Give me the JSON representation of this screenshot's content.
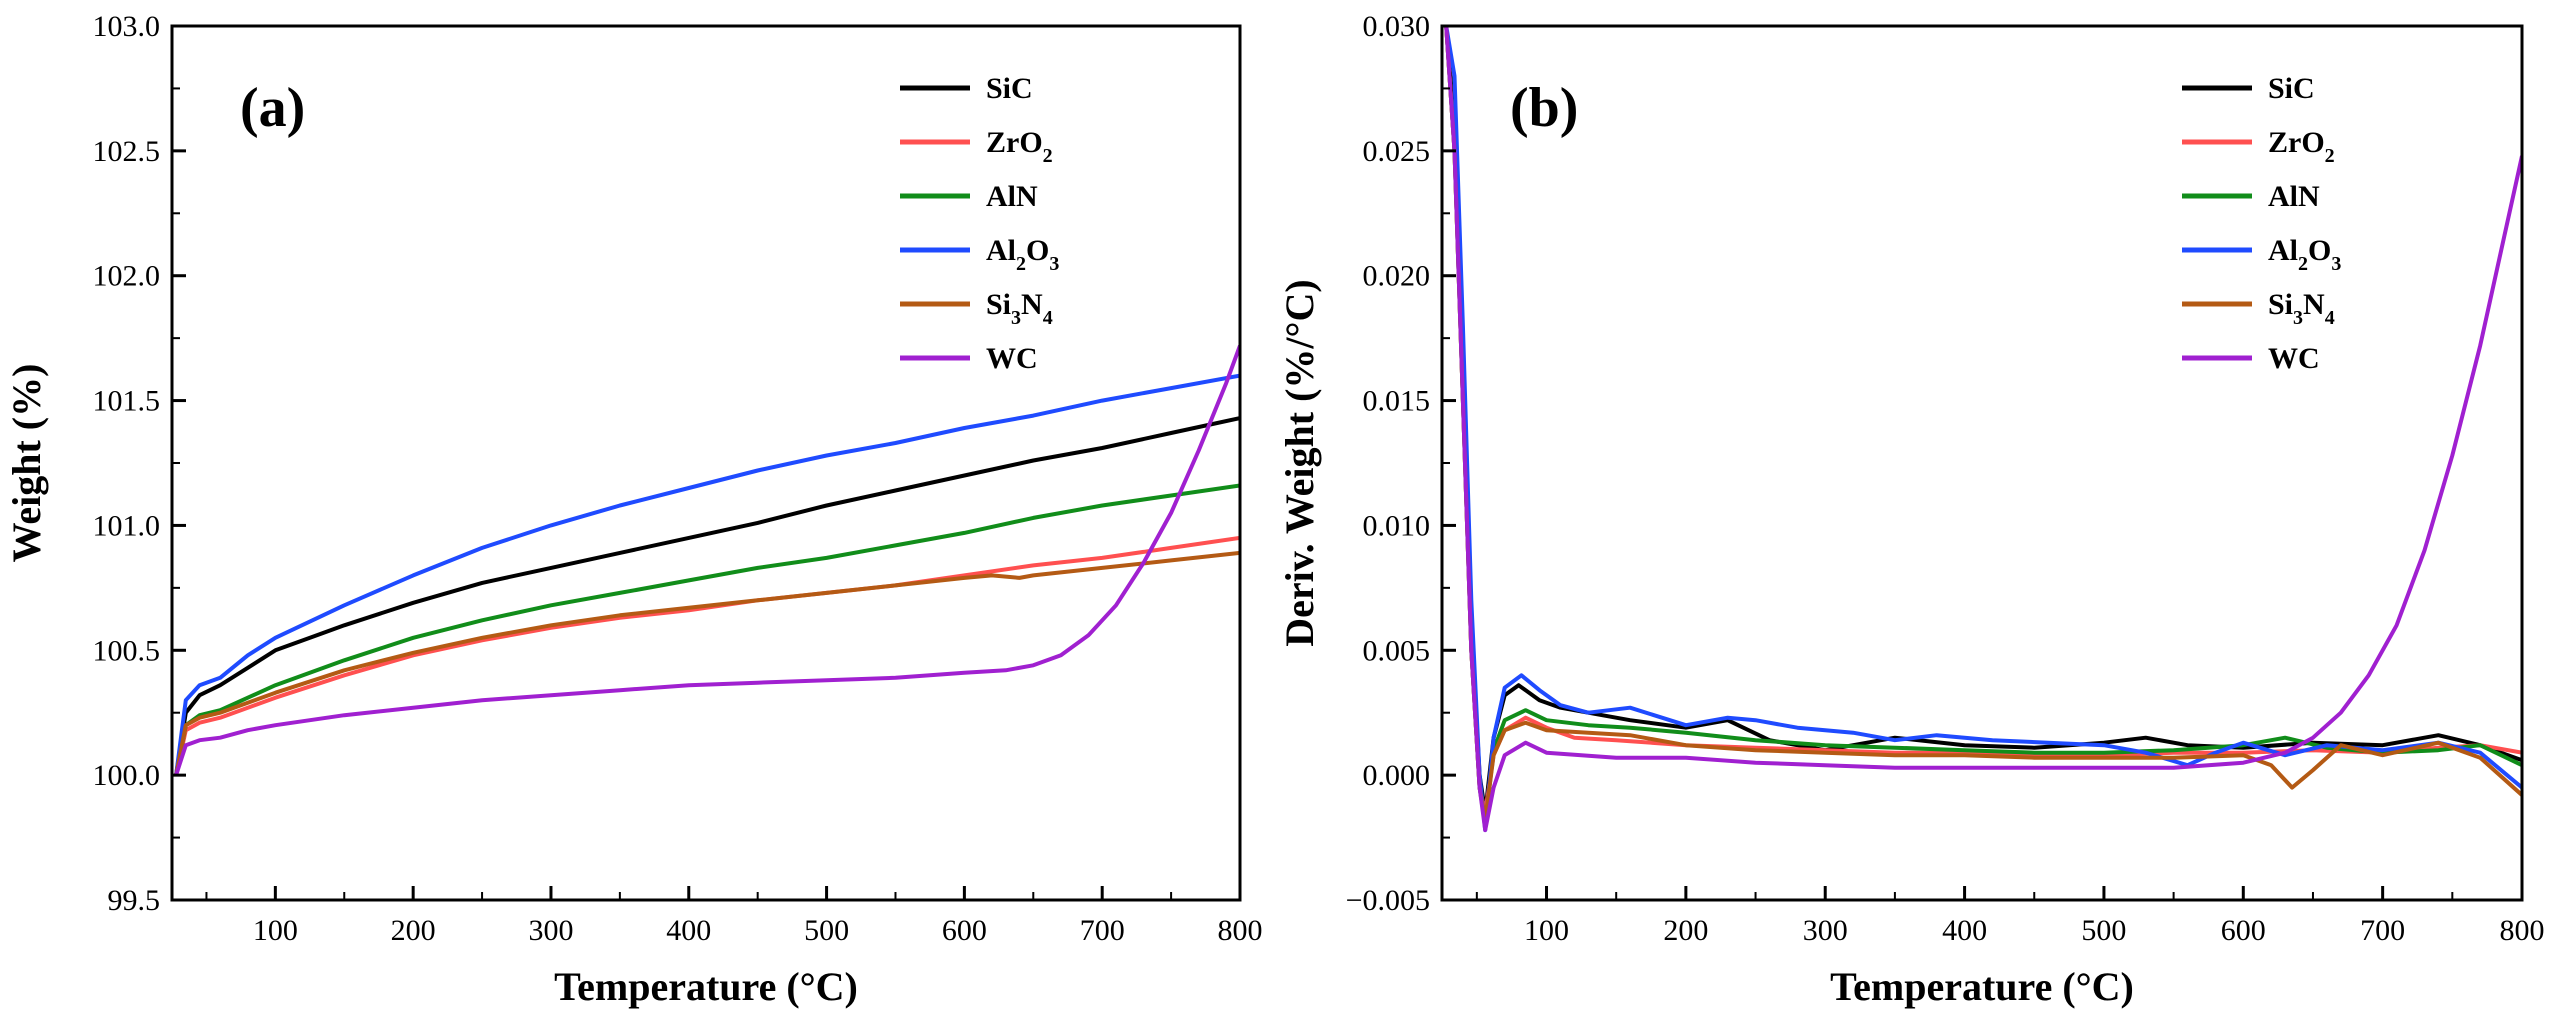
{
  "chart_data": [
    {
      "type": "line",
      "panel_label": "(a)",
      "xlabel": "Temperature (°C)",
      "ylabel": "Weight (%)",
      "xlim": [
        25,
        800
      ],
      "ylim": [
        99.5,
        103.0
      ],
      "x_ticks": [
        100,
        200,
        300,
        400,
        500,
        600,
        700,
        800
      ],
      "y_ticks": [
        99.5,
        100.0,
        100.5,
        101.0,
        101.5,
        102.0,
        102.5,
        103.0
      ],
      "x_tick_labels": [
        "100",
        "200",
        "300",
        "400",
        "500",
        "600",
        "700",
        "800"
      ],
      "y_tick_labels": [
        "99.5",
        "100.0",
        "100.5",
        "101.0",
        "101.5",
        "102.0",
        "102.5",
        "103.0"
      ],
      "legend_position": "top-right",
      "series": [
        {
          "name": "SiC",
          "color": "#000000",
          "x": [
            28,
            35,
            45,
            60,
            80,
            100,
            150,
            200,
            250,
            300,
            350,
            400,
            450,
            500,
            550,
            600,
            650,
            700,
            750,
            800
          ],
          "y": [
            100.0,
            100.25,
            100.32,
            100.36,
            100.43,
            100.5,
            100.6,
            100.69,
            100.77,
            100.83,
            100.89,
            100.95,
            101.01,
            101.08,
            101.14,
            101.2,
            101.26,
            101.31,
            101.37,
            101.43
          ]
        },
        {
          "name": "ZrO2",
          "color": "#ff5050",
          "x": [
            28,
            35,
            45,
            60,
            80,
            100,
            150,
            200,
            250,
            300,
            350,
            400,
            450,
            500,
            550,
            600,
            650,
            700,
            750,
            800
          ],
          "y": [
            100.0,
            100.18,
            100.21,
            100.23,
            100.27,
            100.31,
            100.4,
            100.48,
            100.54,
            100.59,
            100.63,
            100.66,
            100.7,
            100.73,
            100.76,
            100.8,
            100.84,
            100.87,
            100.91,
            100.95
          ]
        },
        {
          "name": "AlN",
          "color": "#118d1a",
          "x": [
            28,
            35,
            45,
            60,
            80,
            100,
            150,
            200,
            250,
            300,
            350,
            400,
            450,
            500,
            550,
            600,
            650,
            700,
            750,
            800
          ],
          "y": [
            100.0,
            100.2,
            100.24,
            100.26,
            100.31,
            100.36,
            100.46,
            100.55,
            100.62,
            100.68,
            100.73,
            100.78,
            100.83,
            100.87,
            100.92,
            100.97,
            101.03,
            101.08,
            101.12,
            101.16
          ]
        },
        {
          "name": "Al2O3",
          "color": "#1f4bff",
          "x": [
            28,
            35,
            45,
            60,
            80,
            100,
            150,
            200,
            250,
            300,
            350,
            400,
            450,
            500,
            550,
            600,
            650,
            700,
            750,
            800
          ],
          "y": [
            100.0,
            100.3,
            100.36,
            100.39,
            100.48,
            100.55,
            100.68,
            100.8,
            100.91,
            101.0,
            101.08,
            101.15,
            101.22,
            101.28,
            101.33,
            101.39,
            101.44,
            101.5,
            101.55,
            101.6
          ]
        },
        {
          "name": "Si3N4",
          "color": "#b45a14",
          "x": [
            28,
            35,
            45,
            60,
            80,
            100,
            150,
            200,
            250,
            300,
            350,
            400,
            450,
            500,
            550,
            600,
            620,
            640,
            650,
            700,
            750,
            800
          ],
          "y": [
            100.0,
            100.2,
            100.23,
            100.25,
            100.29,
            100.33,
            100.42,
            100.49,
            100.55,
            100.6,
            100.64,
            100.67,
            100.7,
            100.73,
            100.76,
            100.79,
            100.8,
            100.79,
            100.8,
            100.83,
            100.86,
            100.89
          ]
        },
        {
          "name": "WC",
          "color": "#a020d0",
          "x": [
            28,
            35,
            45,
            60,
            80,
            100,
            150,
            200,
            250,
            300,
            350,
            400,
            450,
            500,
            550,
            600,
            630,
            650,
            670,
            690,
            710,
            730,
            750,
            770,
            790,
            800
          ],
          "y": [
            100.0,
            100.12,
            100.14,
            100.15,
            100.18,
            100.2,
            100.24,
            100.27,
            100.3,
            100.32,
            100.34,
            100.36,
            100.37,
            100.38,
            100.39,
            100.41,
            100.42,
            100.44,
            100.48,
            100.56,
            100.68,
            100.85,
            101.05,
            101.3,
            101.57,
            101.72
          ]
        }
      ]
    },
    {
      "type": "line",
      "panel_label": "(b)",
      "xlabel": "Temperature (°C)",
      "ylabel": "Deriv. Weight (%/°C)",
      "xlim": [
        25,
        800
      ],
      "ylim": [
        -0.005,
        0.03
      ],
      "x_ticks": [
        100,
        200,
        300,
        400,
        500,
        600,
        700,
        800
      ],
      "y_ticks": [
        -0.005,
        0.0,
        0.005,
        0.01,
        0.015,
        0.02,
        0.025,
        0.03
      ],
      "x_tick_labels": [
        "100",
        "200",
        "300",
        "400",
        "500",
        "600",
        "700",
        "800"
      ],
      "y_tick_labels": [
        "−0.005",
        "0.000",
        "0.005",
        "0.010",
        "0.015",
        "0.020",
        "0.025",
        "0.030"
      ],
      "legend_position": "top-right",
      "series": [
        {
          "name": "SiC",
          "color": "#000000",
          "x": [
            28,
            34,
            40,
            46,
            52,
            56,
            62,
            70,
            80,
            95,
            110,
            130,
            160,
            200,
            230,
            260,
            300,
            350,
            400,
            450,
            500,
            530,
            560,
            600,
            650,
            700,
            740,
            770,
            800
          ],
          "y": [
            0.03,
            0.026,
            0.016,
            0.006,
            0.0,
            -0.0015,
            0.0015,
            0.0032,
            0.0036,
            0.003,
            0.0027,
            0.0025,
            0.0022,
            0.0019,
            0.0022,
            0.0014,
            0.001,
            0.0015,
            0.0012,
            0.0011,
            0.0013,
            0.0015,
            0.0012,
            0.0011,
            0.0013,
            0.0012,
            0.0016,
            0.0012,
            0.0006
          ]
        },
        {
          "name": "ZrO2",
          "color": "#ff5050",
          "x": [
            28,
            34,
            40,
            46,
            52,
            56,
            62,
            70,
            85,
            100,
            120,
            150,
            200,
            250,
            300,
            350,
            400,
            450,
            500,
            550,
            600,
            650,
            700,
            740,
            770,
            800
          ],
          "y": [
            0.03,
            0.025,
            0.015,
            0.005,
            -0.0005,
            -0.0015,
            0.0008,
            0.0018,
            0.0023,
            0.0019,
            0.0015,
            0.0014,
            0.0012,
            0.0011,
            0.001,
            0.0009,
            0.0009,
            0.0008,
            0.0008,
            0.0009,
            0.0009,
            0.001,
            0.0009,
            0.0011,
            0.0012,
            0.0009
          ]
        },
        {
          "name": "AlN",
          "color": "#118d1a",
          "x": [
            28,
            34,
            40,
            46,
            52,
            56,
            62,
            70,
            85,
            100,
            130,
            160,
            200,
            250,
            300,
            350,
            400,
            450,
            500,
            550,
            600,
            630,
            660,
            700,
            740,
            770,
            800
          ],
          "y": [
            0.03,
            0.025,
            0.015,
            0.005,
            -0.0005,
            -0.002,
            0.001,
            0.0022,
            0.0026,
            0.0022,
            0.002,
            0.0019,
            0.0017,
            0.0014,
            0.0012,
            0.0011,
            0.001,
            0.0009,
            0.0009,
            0.001,
            0.0012,
            0.0015,
            0.0011,
            0.0009,
            0.001,
            0.0012,
            0.0004
          ]
        },
        {
          "name": "Al2O3",
          "color": "#1f4bff",
          "x": [
            28,
            34,
            40,
            46,
            52,
            56,
            62,
            70,
            82,
            95,
            110,
            130,
            160,
            200,
            230,
            250,
            280,
            320,
            350,
            380,
            420,
            460,
            500,
            530,
            560,
            580,
            600,
            630,
            660,
            700,
            740,
            770,
            800
          ],
          "y": [
            0.03,
            0.028,
            0.018,
            0.007,
            0.0,
            -0.0022,
            0.0015,
            0.0035,
            0.004,
            0.0034,
            0.0028,
            0.0025,
            0.0027,
            0.002,
            0.0023,
            0.0022,
            0.0019,
            0.0017,
            0.0014,
            0.0016,
            0.0014,
            0.0013,
            0.0012,
            0.0009,
            0.0004,
            0.0009,
            0.0013,
            0.0008,
            0.0012,
            0.001,
            0.0013,
            0.0009,
            -0.0005
          ]
        },
        {
          "name": "Si3N4",
          "color": "#b45a14",
          "x": [
            28,
            34,
            40,
            46,
            52,
            56,
            62,
            70,
            85,
            100,
            130,
            160,
            200,
            250,
            300,
            350,
            400,
            450,
            500,
            550,
            600,
            620,
            635,
            650,
            670,
            700,
            740,
            770,
            800
          ],
          "y": [
            0.03,
            0.025,
            0.015,
            0.005,
            -0.0005,
            -0.0018,
            0.0008,
            0.0018,
            0.0021,
            0.0018,
            0.0017,
            0.0016,
            0.0012,
            0.001,
            0.0009,
            0.0008,
            0.0008,
            0.0007,
            0.0007,
            0.0007,
            0.0008,
            0.0004,
            -0.0005,
            0.0002,
            0.0012,
            0.0008,
            0.0013,
            0.0007,
            -0.0008
          ]
        },
        {
          "name": "WC",
          "color": "#a020d0",
          "x": [
            28,
            34,
            40,
            46,
            52,
            56,
            62,
            70,
            85,
            100,
            150,
            200,
            250,
            300,
            350,
            400,
            450,
            500,
            550,
            600,
            630,
            650,
            670,
            690,
            710,
            730,
            750,
            770,
            785,
            800
          ],
          "y": [
            0.03,
            0.025,
            0.015,
            0.005,
            -0.0005,
            -0.0022,
            -0.0005,
            0.0008,
            0.0013,
            0.0009,
            0.0007,
            0.0007,
            0.0005,
            0.0004,
            0.0003,
            0.0003,
            0.0003,
            0.0003,
            0.0003,
            0.0005,
            0.0009,
            0.0015,
            0.0025,
            0.004,
            0.006,
            0.009,
            0.0128,
            0.0172,
            0.021,
            0.0248
          ]
        }
      ]
    }
  ]
}
